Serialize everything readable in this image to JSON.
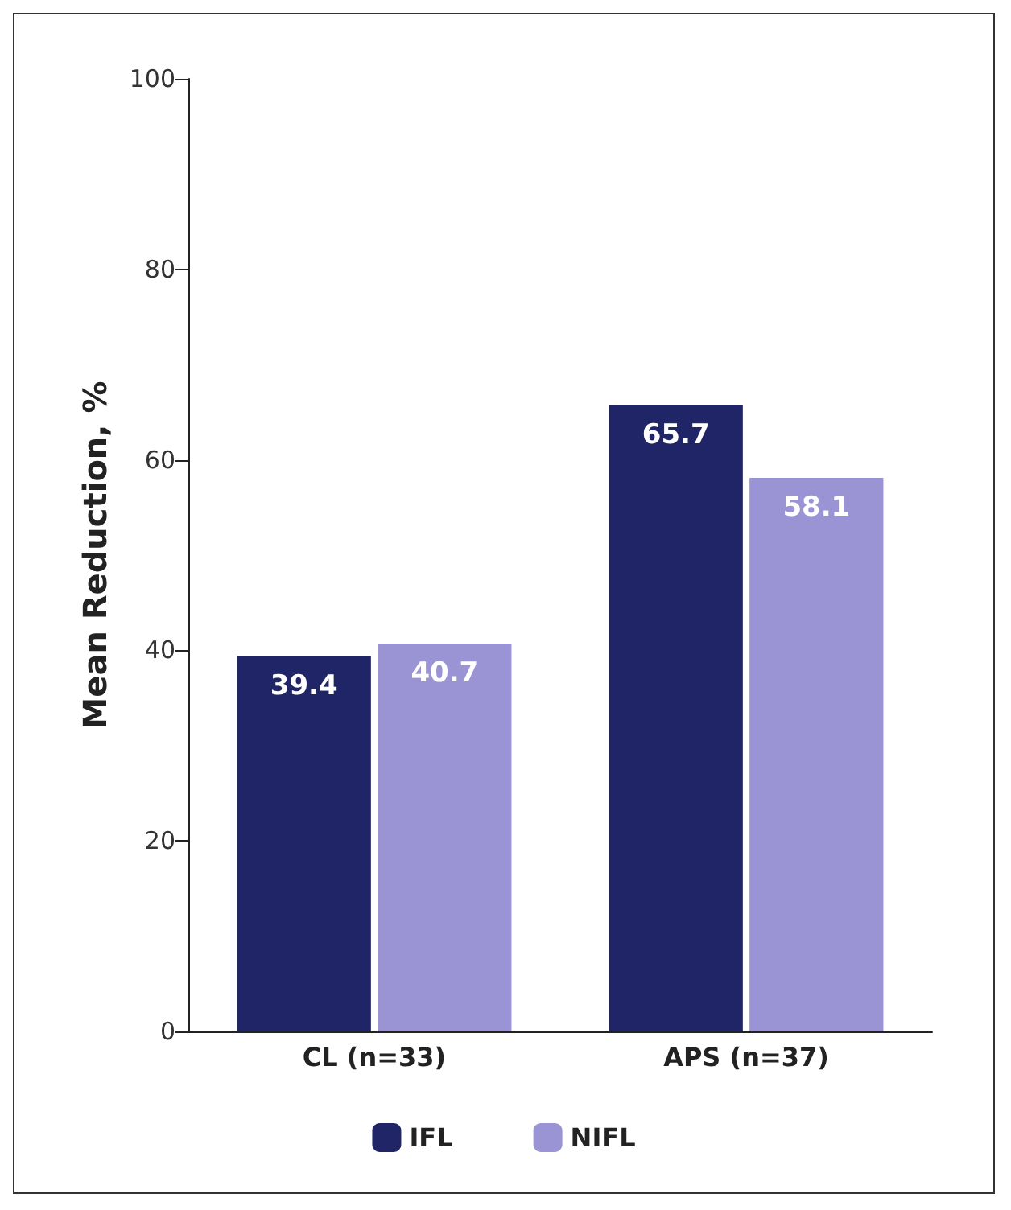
{
  "chart_data": {
    "type": "bar",
    "ylabel": "Mean Reduction, %",
    "categories": [
      "CL (n=33)",
      "APS (n=37)"
    ],
    "series": [
      {
        "name": "IFL",
        "color": "#1f2566",
        "values": [
          39.4,
          65.7
        ]
      },
      {
        "name": "NIFL",
        "color": "#9a94d4",
        "values": [
          40.7,
          58.1
        ]
      }
    ],
    "ylim": [
      0,
      100
    ],
    "yticks": [
      0,
      20,
      40,
      60,
      80,
      100
    ],
    "grid": false,
    "legend": "bottom",
    "data_labels": true
  }
}
